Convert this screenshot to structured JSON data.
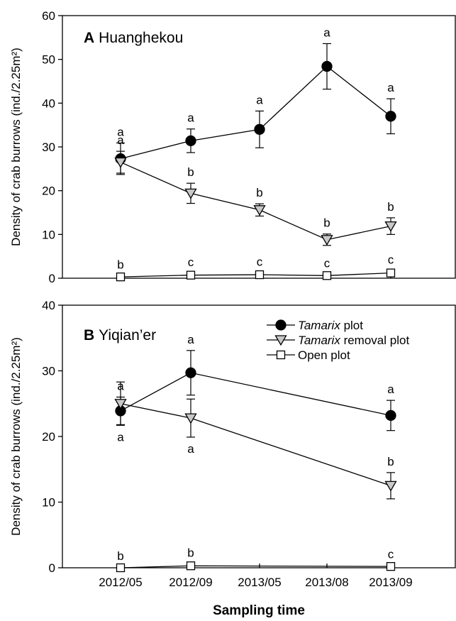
{
  "chart_data": [
    {
      "type": "line",
      "panel_letter": "A",
      "panel_site": "Huanghekou",
      "ylabel": "Density of crab burrows (ind./2.25m²)",
      "ylim": [
        0,
        60
      ],
      "yticks": [
        0,
        10,
        20,
        30,
        40,
        50,
        60
      ],
      "categories": [
        "2012/05",
        "2012/09",
        "2013/05",
        "2013/08",
        "2013/09"
      ],
      "series": [
        {
          "name": "Tamarix plot",
          "marker": "circle",
          "fill": "#000000",
          "values": [
            27.3,
            31.4,
            34.0,
            48.4,
            37.0
          ],
          "errors": [
            3.6,
            2.7,
            4.2,
            5.2,
            4.0
          ],
          "letters": [
            "a",
            "a",
            "a",
            "a",
            "a"
          ]
        },
        {
          "name": "Tamarix removal plot",
          "marker": "triangle-down",
          "fill": "#c8c8c8",
          "values": [
            26.5,
            19.4,
            15.6,
            8.8,
            11.9
          ],
          "errors": [
            2.5,
            2.3,
            1.4,
            1.3,
            1.9
          ],
          "letters": [
            "a",
            "b",
            "b",
            "b",
            "b"
          ]
        },
        {
          "name": "Open plot",
          "marker": "square",
          "fill": "#ffffff",
          "values": [
            0.3,
            0.7,
            0.8,
            0.6,
            1.2
          ],
          "errors": [
            0.3,
            0.4,
            0.4,
            0.3,
            0.5
          ],
          "letters": [
            "b",
            "c",
            "c",
            "c",
            "c"
          ]
        }
      ]
    },
    {
      "type": "line",
      "panel_letter": "B",
      "panel_site": "Yiqian’er",
      "ylabel": "Density of crab burrows (ind./2.25m²)",
      "ylim": [
        0,
        40
      ],
      "yticks": [
        0,
        10,
        20,
        30,
        40
      ],
      "categories": [
        "2012/05",
        "2012/09",
        "2013/05",
        "2013/08",
        "2013/09"
      ],
      "xlabel": "Sampling time",
      "legend": {
        "position": "top-right",
        "entries": [
          {
            "italic": "Tamarix",
            "rest": " plot",
            "marker": "circle",
            "fill": "#000000"
          },
          {
            "italic": "Tamarix",
            "rest": " removal plot",
            "marker": "triangle-down",
            "fill": "#c8c8c8"
          },
          {
            "italic": "",
            "rest": "Open plot",
            "marker": "square",
            "fill": "#ffffff"
          }
        ]
      },
      "series": [
        {
          "name": "Tamarix plot",
          "marker": "circle",
          "fill": "#000000",
          "x": [
            "2012/05",
            "2012/09",
            "2013/09"
          ],
          "values": [
            23.9,
            29.7,
            23.2
          ],
          "errors": [
            2.1,
            3.4,
            2.3
          ],
          "letters": [
            "a",
            "a",
            "a"
          ]
        },
        {
          "name": "Tamarix removal plot",
          "marker": "triangle-down",
          "fill": "#c8c8c8",
          "x": [
            "2012/05",
            "2012/09",
            "2013/09"
          ],
          "values": [
            25.0,
            22.8,
            12.5
          ],
          "errors": [
            3.3,
            2.9,
            2.0
          ],
          "letters": [
            "a",
            "a",
            "b"
          ]
        },
        {
          "name": "Open plot",
          "marker": "square",
          "fill": "#ffffff",
          "x": [
            "2012/05",
            "2012/09",
            "2013/09"
          ],
          "values": [
            0.0,
            0.3,
            0.2
          ],
          "errors": [
            0.1,
            0.3,
            0.2
          ],
          "letters": [
            "b",
            "b",
            "c"
          ]
        }
      ]
    }
  ]
}
